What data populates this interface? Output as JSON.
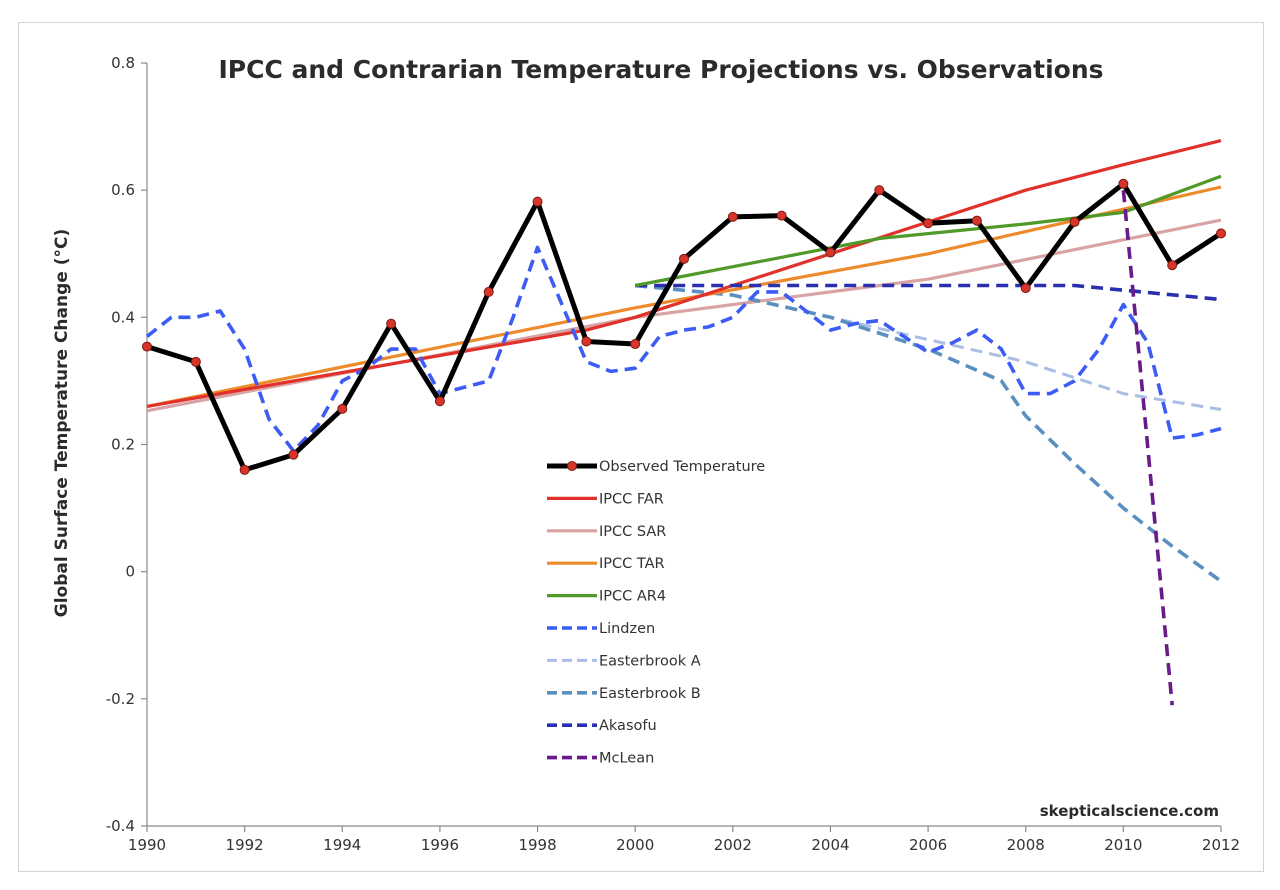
{
  "chart_data": {
    "type": "line",
    "title": "IPCC and Contrarian Temperature Projections vs. Observations",
    "xlabel": "",
    "ylabel": "Global Surface Temperature Change (°C)",
    "xlim": [
      1990,
      2012
    ],
    "ylim": [
      -0.4,
      0.8
    ],
    "xticks": [
      "1990",
      "1992",
      "1994",
      "1996",
      "1998",
      "2000",
      "2002",
      "2004",
      "2006",
      "2008",
      "2010",
      "2012"
    ],
    "yticks": [
      "-0.4",
      "-0.2",
      "0",
      "0.2",
      "0.4",
      "0.6",
      "0.8"
    ],
    "grid": false,
    "legend_position": "center-bottom",
    "credit": "skepticalscience.com",
    "series": [
      {
        "name": "Observed Temperature",
        "color": "#000000",
        "style": "solid-markers",
        "points": [
          [
            1990,
            0.354
          ],
          [
            1991,
            0.33
          ],
          [
            1992,
            0.16
          ],
          [
            1993,
            0.184
          ],
          [
            1994,
            0.256
          ],
          [
            1995,
            0.39
          ],
          [
            1996,
            0.268
          ],
          [
            1997,
            0.44
          ],
          [
            1998,
            0.582
          ],
          [
            1999,
            0.362
          ],
          [
            2000,
            0.358
          ],
          [
            2001,
            0.492
          ],
          [
            2002,
            0.558
          ],
          [
            2003,
            0.56
          ],
          [
            2004,
            0.502
          ],
          [
            2005,
            0.6
          ],
          [
            2006,
            0.548
          ],
          [
            2007,
            0.552
          ],
          [
            2008,
            0.446
          ],
          [
            2009,
            0.55
          ],
          [
            2010,
            0.61
          ],
          [
            2011,
            0.482
          ],
          [
            2012,
            0.532
          ]
        ]
      },
      {
        "name": "IPCC FAR",
        "color": "#e0312b",
        "style": "solid",
        "points": [
          [
            1990,
            0.26
          ],
          [
            1999,
            0.38
          ],
          [
            2000,
            0.4
          ],
          [
            2002,
            0.45
          ],
          [
            2004,
            0.5
          ],
          [
            2006,
            0.55
          ],
          [
            2008,
            0.6
          ],
          [
            2010,
            0.64
          ],
          [
            2012,
            0.678
          ]
        ]
      },
      {
        "name": "IPCC SAR",
        "color": "#d9a3a3",
        "style": "solid",
        "points": [
          [
            1990,
            0.253
          ],
          [
            2000,
            0.4
          ],
          [
            2006,
            0.46
          ],
          [
            2012,
            0.553
          ]
        ]
      },
      {
        "name": "IPCC TAR",
        "color": "#ed8a2c",
        "style": "solid",
        "points": [
          [
            1990,
            0.26
          ],
          [
            2000,
            0.415
          ],
          [
            2006,
            0.5
          ],
          [
            2010,
            0.57
          ],
          [
            2012,
            0.605
          ]
        ]
      },
      {
        "name": "IPCC AR4",
        "color": "#4f9a28",
        "style": "solid",
        "points": [
          [
            2000,
            0.45
          ],
          [
            2005,
            0.524
          ],
          [
            2008,
            0.547
          ],
          [
            2010,
            0.565
          ],
          [
            2012,
            0.622
          ]
        ]
      },
      {
        "name": "Lindzen",
        "color": "#3d5cf5",
        "style": "dashed-bold",
        "points": [
          [
            1990,
            0.37
          ],
          [
            1990.5,
            0.4
          ],
          [
            1991,
            0.4
          ],
          [
            1991.5,
            0.41
          ],
          [
            1992,
            0.35
          ],
          [
            1992.5,
            0.24
          ],
          [
            1993,
            0.19
          ],
          [
            1993.5,
            0.23
          ],
          [
            1994,
            0.3
          ],
          [
            1994.5,
            0.32
          ],
          [
            1995,
            0.35
          ],
          [
            1995.5,
            0.35
          ],
          [
            1996,
            0.28
          ],
          [
            1996.5,
            0.29
          ],
          [
            1997,
            0.3
          ],
          [
            1997.5,
            0.4
          ],
          [
            1998,
            0.51
          ],
          [
            1998.5,
            0.42
          ],
          [
            1999,
            0.33
          ],
          [
            1999.5,
            0.315
          ],
          [
            2000,
            0.32
          ],
          [
            2000.5,
            0.37
          ],
          [
            2001,
            0.38
          ],
          [
            2001.5,
            0.385
          ],
          [
            2002,
            0.4
          ],
          [
            2002.5,
            0.44
          ],
          [
            2003,
            0.44
          ],
          [
            2003.5,
            0.41
          ],
          [
            2004,
            0.38
          ],
          [
            2004.5,
            0.39
          ],
          [
            2005,
            0.395
          ],
          [
            2005.5,
            0.37
          ],
          [
            2006,
            0.345
          ],
          [
            2006.5,
            0.36
          ],
          [
            2007,
            0.38
          ],
          [
            2007.5,
            0.35
          ],
          [
            2008,
            0.28
          ],
          [
            2008.5,
            0.28
          ],
          [
            2009,
            0.3
          ],
          [
            2009.5,
            0.35
          ],
          [
            2010,
            0.42
          ],
          [
            2010.5,
            0.36
          ],
          [
            2011,
            0.21
          ],
          [
            2011.5,
            0.215
          ],
          [
            2012,
            0.225
          ]
        ]
      },
      {
        "name": "Easterbrook A",
        "color": "#a9bde5",
        "style": "dashed",
        "points": [
          [
            2000,
            0.45
          ],
          [
            2002,
            0.435
          ],
          [
            2004,
            0.4
          ],
          [
            2006,
            0.365
          ],
          [
            2008,
            0.33
          ],
          [
            2010,
            0.28
          ],
          [
            2012,
            0.255
          ]
        ]
      },
      {
        "name": "Easterbrook B",
        "color": "#5a8fbf",
        "style": "dashed-bold",
        "points": [
          [
            2000,
            0.45
          ],
          [
            2002,
            0.435
          ],
          [
            2004,
            0.4
          ],
          [
            2006,
            0.35
          ],
          [
            2007.5,
            0.3
          ],
          [
            2008,
            0.245
          ],
          [
            2009,
            0.17
          ],
          [
            2010,
            0.1
          ],
          [
            2011,
            0.04
          ],
          [
            2012,
            -0.015
          ]
        ]
      },
      {
        "name": "Akasofu",
        "color": "#2a2fb0",
        "style": "dashed-bold",
        "points": [
          [
            2000,
            0.45
          ],
          [
            2004,
            0.45
          ],
          [
            2009,
            0.45
          ],
          [
            2012,
            0.428
          ]
        ]
      },
      {
        "name": "McLean",
        "color": "#6a1b8a",
        "style": "dashed-bold",
        "points": [
          [
            2010,
            0.6
          ],
          [
            2011,
            -0.21
          ]
        ]
      }
    ]
  }
}
